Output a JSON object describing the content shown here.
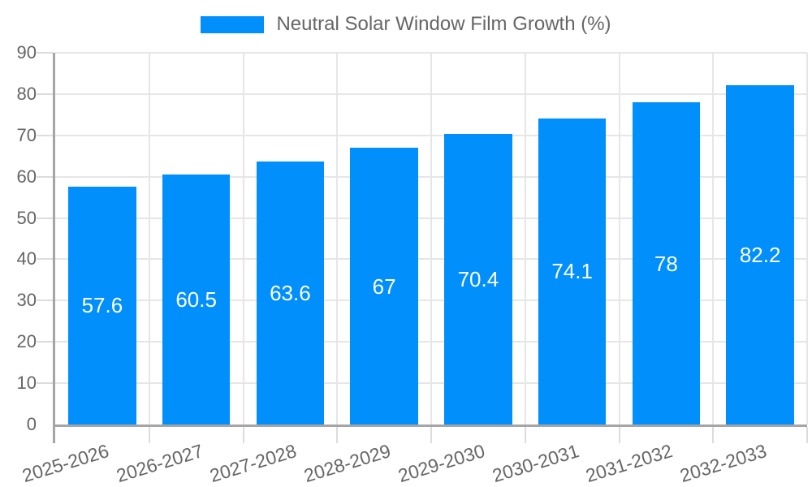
{
  "legend": {
    "label": "Neutral Solar Window Film Growth (%)"
  },
  "chart_data": {
    "type": "bar",
    "title": "Neutral Solar Window Film Growth (%)",
    "categories": [
      "2025-2026",
      "2026-2027",
      "2027-2028",
      "2028-2029",
      "2029-2030",
      "2030-2031",
      "2031-2032",
      "2032-2033"
    ],
    "series": [
      {
        "name": "Neutral Solar Window Film Growth (%)",
        "values": [
          57.6,
          60.5,
          63.6,
          67,
          70.4,
          74.1,
          78,
          82.2
        ]
      }
    ],
    "value_labels": [
      "57.6",
      "60.5",
      "63.6",
      "67",
      "70.4",
      "74.1",
      "78",
      "82.2"
    ],
    "xlabel": "",
    "ylabel": "",
    "ylim": [
      0,
      90
    ],
    "ytick_step": 10,
    "ytick_labels": [
      "0",
      "10",
      "20",
      "30",
      "40",
      "50",
      "60",
      "70",
      "80",
      "90"
    ],
    "grid": true,
    "legend_position": "top",
    "bar_width_fraction": 0.72,
    "colors": {
      "bar": "#008FFB",
      "grid": "#e6e6e6",
      "axis": "#a5a5a5",
      "tick": "#dcdcdc",
      "text": "#666666",
      "value_label": "#ffffff",
      "background": "#ffffff"
    }
  }
}
